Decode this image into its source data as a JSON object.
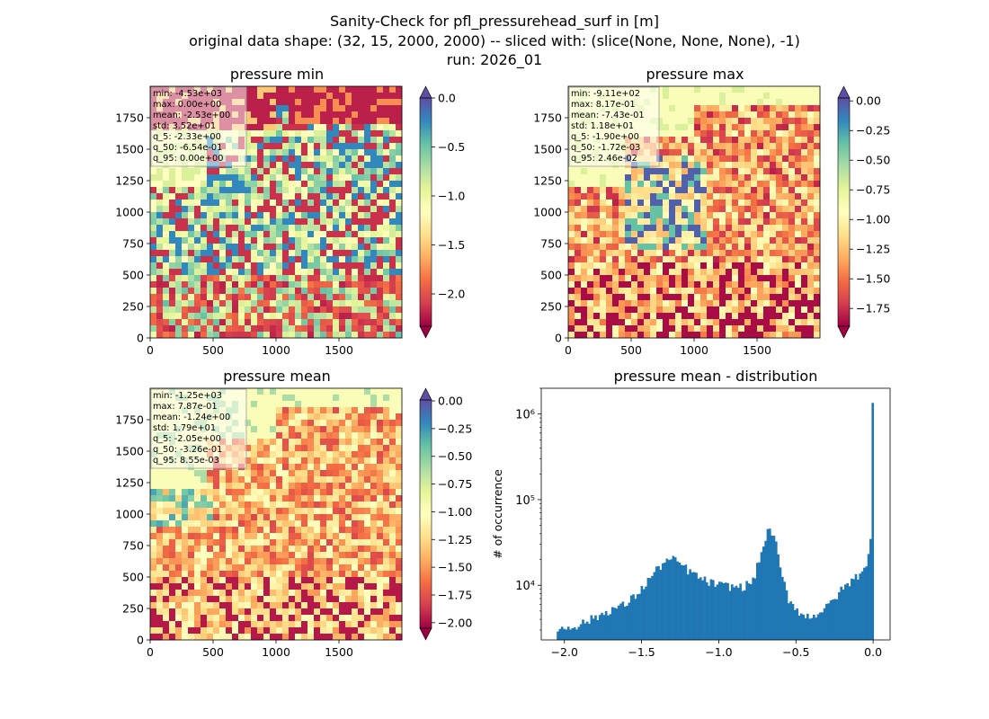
{
  "figure": {
    "title_line1": "Sanity-Check for pfl_pressurehead_surf in [m]",
    "title_line2": "original data shape: (32, 15, 2000, 2000) -- sliced with: (slice(None, None, None), -1)",
    "title_line3": "run: 2026_01"
  },
  "colormap": {
    "name": "Spectral",
    "stops": [
      "#9e0142",
      "#d53e4f",
      "#f46d43",
      "#fdae61",
      "#fee08b",
      "#ffffbf",
      "#e6f598",
      "#abdda4",
      "#66c2a5",
      "#3288bd",
      "#5e4fa2"
    ]
  },
  "chart_data": [
    {
      "type": "heatmap",
      "title": "pressure min",
      "x_ticks": [
        "0",
        "500",
        "1000",
        "1500"
      ],
      "y_ticks": [
        "0",
        "250",
        "500",
        "750",
        "1000",
        "1250",
        "1500",
        "1750"
      ],
      "xlim": [
        0,
        2000
      ],
      "ylim": [
        0,
        2000
      ],
      "stats": [
        "min: -4.53e+03",
        "max: 0.00e+00",
        "mean: -2.53e+00",
        "std: 3.52e+01",
        "q_5: -2.33e+00",
        "q_50: -6.54e-01",
        "q_95: 0.00e+00"
      ],
      "colorbar": {
        "vmin": -2.33,
        "vmax": 0.0,
        "ticks": [
          0.0,
          -0.5,
          -1.0,
          -1.5,
          -2.0
        ],
        "tick_labels": [
          "0.0",
          "−0.5",
          "−1.0",
          "−1.5",
          "−2.0"
        ],
        "extend": "both"
      }
    },
    {
      "type": "heatmap",
      "title": "pressure max",
      "x_ticks": [
        "0",
        "500",
        "1000",
        "1500"
      ],
      "y_ticks": [
        "0",
        "250",
        "500",
        "750",
        "1000",
        "1250",
        "1500",
        "1750"
      ],
      "xlim": [
        0,
        2000
      ],
      "ylim": [
        0,
        2000
      ],
      "stats": [
        "min: -9.11e+02",
        "max: 8.17e-01",
        "mean: -7.43e-01",
        "std: 1.18e+01",
        "q_5: -1.90e+00",
        "q_50: -1.72e-03",
        "q_95: 2.46e-02"
      ],
      "colorbar": {
        "vmin": -1.9,
        "vmax": 0.0246,
        "ticks": [
          0.0,
          -0.25,
          -0.5,
          -0.75,
          -1.0,
          -1.25,
          -1.5,
          -1.75
        ],
        "tick_labels": [
          "0.00",
          "−0.25",
          "−0.50",
          "−0.75",
          "−1.00",
          "−1.25",
          "−1.50",
          "−1.75"
        ],
        "extend": "both"
      }
    },
    {
      "type": "heatmap",
      "title": "pressure mean",
      "x_ticks": [
        "0",
        "500",
        "1000",
        "1500"
      ],
      "y_ticks": [
        "0",
        "250",
        "500",
        "750",
        "1000",
        "1250",
        "1500",
        "1750"
      ],
      "xlim": [
        0,
        2000
      ],
      "ylim": [
        0,
        2000
      ],
      "stats": [
        "min: -1.25e+03",
        "max: 7.87e-01",
        "mean: -1.24e+00",
        "std: 1.79e+01",
        "q_5: -2.05e+00",
        "q_50: -3.26e-01",
        "q_95: 8.55e-03"
      ],
      "colorbar": {
        "vmin": -2.05,
        "vmax": 0.00855,
        "ticks": [
          0.0,
          -0.25,
          -0.5,
          -0.75,
          -1.0,
          -1.25,
          -1.5,
          -1.75,
          -2.0
        ],
        "tick_labels": [
          "0.00",
          "−0.25",
          "−0.50",
          "−0.75",
          "−1.00",
          "−1.25",
          "−1.50",
          "−1.75",
          "−2.00"
        ],
        "extend": "both"
      }
    },
    {
      "type": "bar",
      "title": "pressure mean - distribution",
      "ylabel": "# of occurrence",
      "xlabel": "",
      "y_scale": "log",
      "xlim": [
        -2.15,
        0.11
      ],
      "ylim": [
        2300,
        2000000
      ],
      "x_ticks": [
        -2.0,
        -1.5,
        -1.0,
        -0.5,
        0.0
      ],
      "x_tick_labels": [
        "−2.0",
        "−1.5",
        "−1.0",
        "−0.5",
        "0.0"
      ],
      "y_ticks": [
        10000,
        100000,
        1000000
      ],
      "y_tick_labels": [
        "10⁴",
        "10⁵",
        "10⁶"
      ],
      "bar_color": "#1f77b4",
      "bins": {
        "start": -2.05,
        "width": 0.0136
      },
      "profile_points": [
        [
          -2.05,
          3000
        ],
        [
          -1.9,
          3500
        ],
        [
          -1.8,
          4200
        ],
        [
          -1.7,
          5200
        ],
        [
          -1.6,
          6000
        ],
        [
          -1.5,
          9000
        ],
        [
          -1.42,
          14000
        ],
        [
          -1.35,
          19000
        ],
        [
          -1.3,
          20000
        ],
        [
          -1.25,
          18000
        ],
        [
          -1.2,
          15000
        ],
        [
          -1.1,
          11500
        ],
        [
          -1.0,
          10000
        ],
        [
          -0.85,
          9500
        ],
        [
          -0.78,
          11000
        ],
        [
          -0.72,
          25000
        ],
        [
          -0.69,
          40000
        ],
        [
          -0.66,
          45000
        ],
        [
          -0.63,
          30000
        ],
        [
          -0.6,
          15000
        ],
        [
          -0.55,
          7000
        ],
        [
          -0.45,
          4300
        ],
        [
          -0.38,
          4500
        ],
        [
          -0.3,
          5500
        ],
        [
          -0.2,
          9000
        ],
        [
          -0.1,
          13000
        ],
        [
          -0.05,
          17000
        ],
        [
          -0.02,
          25000
        ],
        [
          -0.01,
          60000
        ],
        [
          0.0,
          1350000
        ]
      ]
    }
  ]
}
